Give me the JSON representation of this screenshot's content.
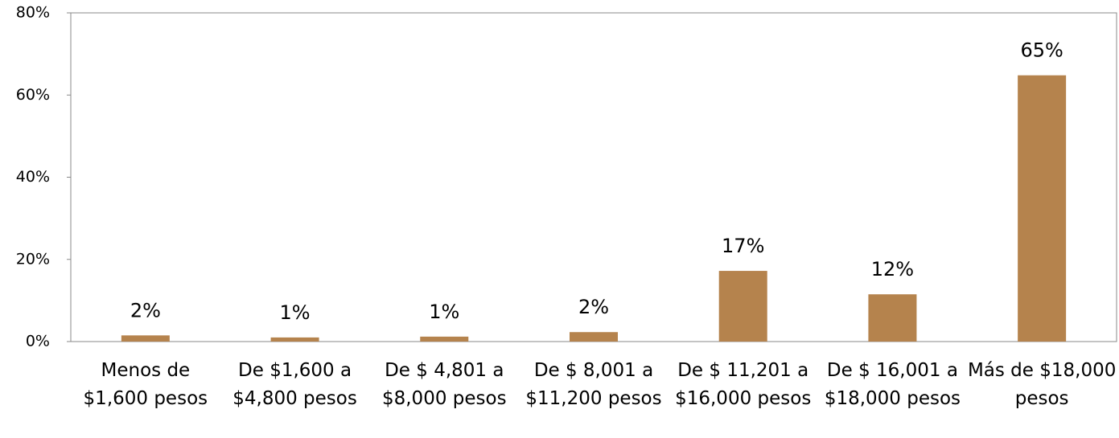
{
  "chart_data": {
    "type": "bar",
    "categories": [
      "Menos de $1,600 pesos",
      "De $1,600 a $4,800 pesos",
      "De $ 4,801 a $8,000 pesos",
      "De $ 8,001 a $11,200 pesos",
      "De $ 11,201 a $16,000 pesos",
      "De $ 16,001 a $18,000 pesos",
      "Más de $18,000 pesos"
    ],
    "values": [
      1.5,
      1,
      1.2,
      2.3,
      17.2,
      11.5,
      64.8
    ],
    "value_labels": [
      "2%",
      "1%",
      "1%",
      "2%",
      "17%",
      "12%",
      "65%"
    ],
    "color": "#b5834d",
    "ylim": [
      0,
      80
    ],
    "yticks": [
      {
        "value": 0,
        "label": "0%"
      },
      {
        "value": 20,
        "label": "20%"
      },
      {
        "value": 40,
        "label": "40%"
      },
      {
        "value": 60,
        "label": "60%"
      },
      {
        "value": 80,
        "label": "80%"
      }
    ]
  }
}
